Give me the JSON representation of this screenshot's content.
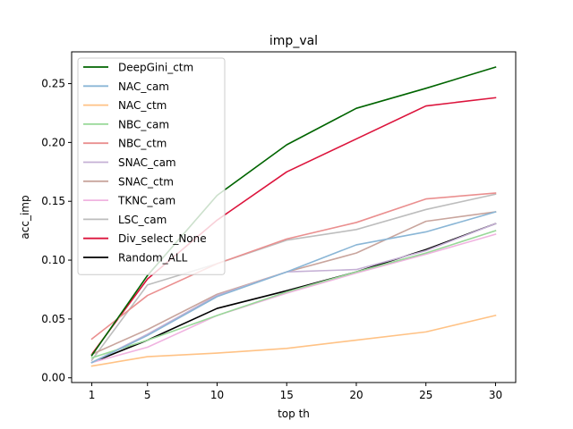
{
  "chart_data": {
    "type": "line",
    "title": "imp_val",
    "xlabel": "top th",
    "ylabel": "acc_imp",
    "x": [
      1,
      5,
      10,
      15,
      20,
      25,
      30
    ],
    "x_ticks": [
      "1",
      "5",
      "10",
      "15",
      "20",
      "25",
      "30"
    ],
    "y_ticks": [
      "0.00",
      "0.05",
      "0.10",
      "0.15",
      "0.20",
      "0.25"
    ],
    "ylim": [
      -0.004,
      0.277
    ],
    "grid": false,
    "legend_position": "top-left",
    "series": [
      {
        "name": "DeepGini_ctm",
        "color": "#006400",
        "values": [
          0.019,
          0.087,
          0.155,
          0.198,
          0.229,
          0.246,
          0.264
        ]
      },
      {
        "name": "NAC_cam",
        "color": "#8ab6d6",
        "values": [
          0.013,
          0.036,
          0.069,
          0.09,
          0.113,
          0.124,
          0.141
        ]
      },
      {
        "name": "NAC_ctm",
        "color": "#ffc285",
        "values": [
          0.01,
          0.018,
          0.021,
          0.025,
          0.032,
          0.039,
          0.053
        ]
      },
      {
        "name": "NBC_cam",
        "color": "#98d898",
        "values": [
          0.017,
          0.032,
          0.053,
          0.073,
          0.09,
          0.106,
          0.125
        ]
      },
      {
        "name": "NBC_ctm",
        "color": "#ea8f8f",
        "values": [
          0.033,
          0.07,
          0.097,
          0.118,
          0.132,
          0.152,
          0.157
        ]
      },
      {
        "name": "SNAC_cam",
        "color": "#c5b0d5",
        "values": [
          0.013,
          0.037,
          0.07,
          0.09,
          0.092,
          0.108,
          0.131
        ]
      },
      {
        "name": "SNAC_ctm",
        "color": "#c9a59d",
        "values": [
          0.02,
          0.041,
          0.071,
          0.09,
          0.106,
          0.133,
          0.141
        ]
      },
      {
        "name": "TKNC_cam",
        "color": "#f0b3e0",
        "values": [
          0.013,
          0.026,
          0.053,
          0.072,
          0.089,
          0.105,
          0.122
        ]
      },
      {
        "name": "LSC_cam",
        "color": "#bdbdbd",
        "values": [
          0.015,
          0.079,
          0.097,
          0.117,
          0.126,
          0.143,
          0.156
        ]
      },
      {
        "name": "Div_select_None",
        "color": "#dc143c",
        "values": [
          0.02,
          0.084,
          0.134,
          0.175,
          0.203,
          0.231,
          0.238
        ]
      },
      {
        "name": "Random_ALL",
        "color": "#000000",
        "values": [
          0.013,
          0.032,
          0.059,
          0.074,
          0.09,
          0.109,
          0.131
        ]
      }
    ]
  }
}
